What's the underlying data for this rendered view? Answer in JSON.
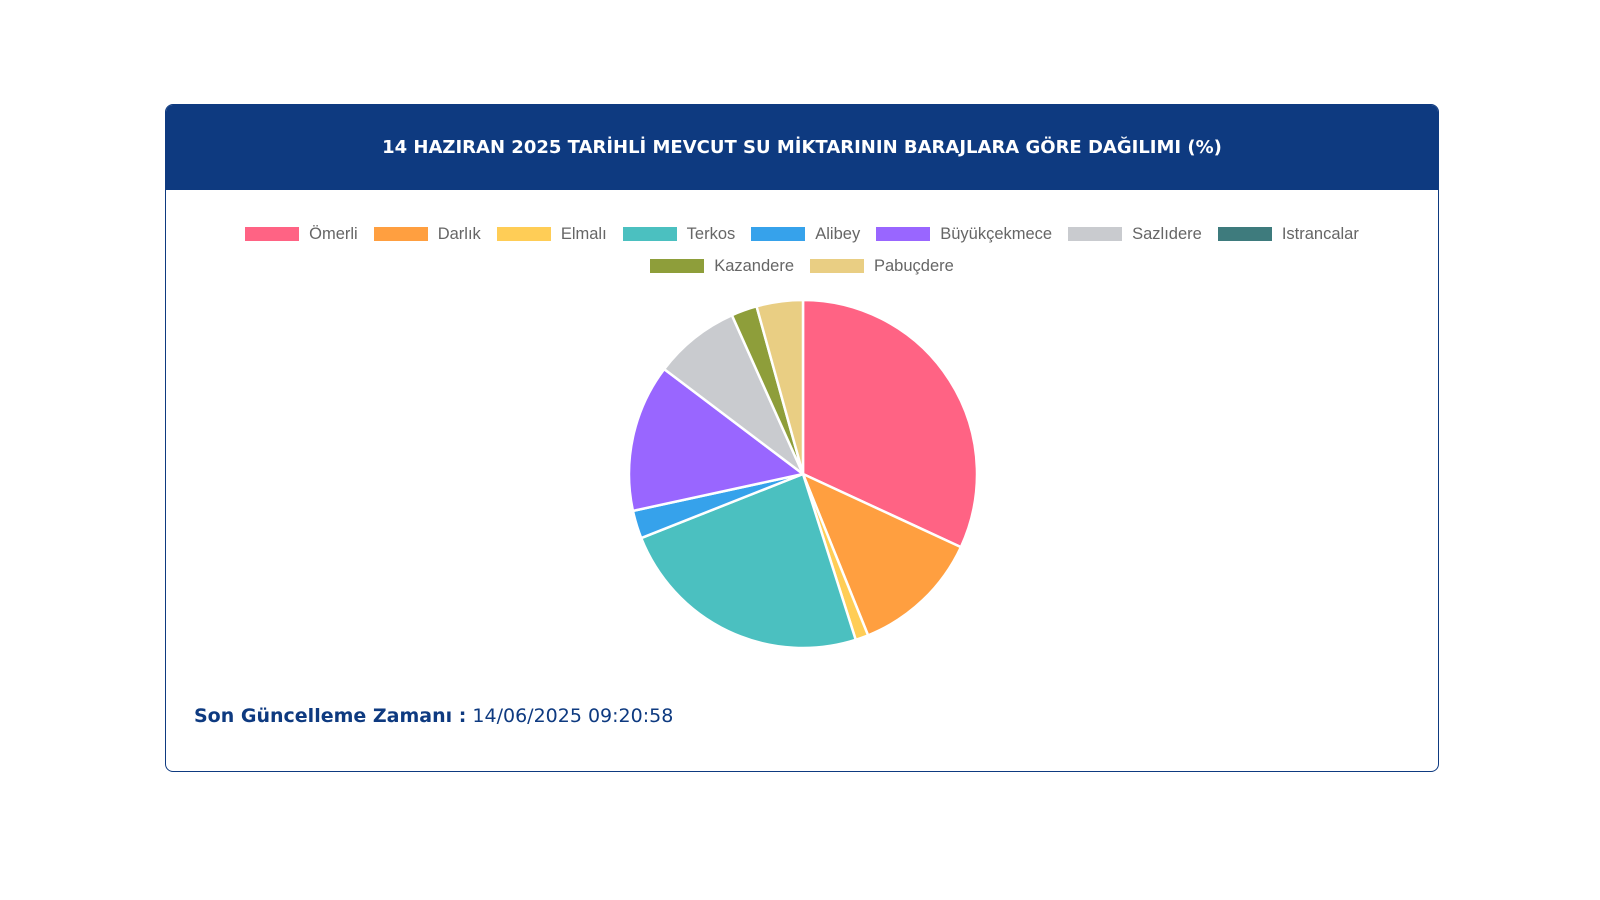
{
  "header": {
    "title": "14 HAZIRAN 2025 TARİHLİ MEVCUT SU MİKTARININ BARAJLARA GÖRE DAĞILIMI (%)"
  },
  "footer": {
    "label": "Son Güncelleme Zamanı :",
    "value": "14/06/2025 09:20:58"
  },
  "chart_data": {
    "type": "pie",
    "title": "14 HAZIRAN 2025 TARİHLİ MEVCUT SU MİKTARININ BARAJLARA GÖRE DAĞILIMI (%)",
    "legend_position": "top",
    "start_angle": "12 o'clock, clockwise",
    "slices": [
      {
        "label": "Ömerli",
        "value": 31.9,
        "color": "#ff6384"
      },
      {
        "label": "Darlık",
        "value": 12.0,
        "color": "#ff9f40"
      },
      {
        "label": "Elmalı",
        "value": 1.2,
        "color": "#ffcd56"
      },
      {
        "label": "Terkos",
        "value": 23.9,
        "color": "#4bc0c0"
      },
      {
        "label": "Alibey",
        "value": 2.6,
        "color": "#36a2eb"
      },
      {
        "label": "Büyükçekmece",
        "value": 13.7,
        "color": "#9966ff"
      },
      {
        "label": "Sazlıdere",
        "value": 8.0,
        "color": "#c9cbcf"
      },
      {
        "label": "Istrancalar",
        "value": 0.0,
        "color": "#3e7b7d"
      },
      {
        "label": "Kazandere",
        "value": 2.4,
        "color": "#8e9e3a"
      },
      {
        "label": "Pabuçdere",
        "value": 4.3,
        "color": "#e9ce83"
      }
    ]
  }
}
